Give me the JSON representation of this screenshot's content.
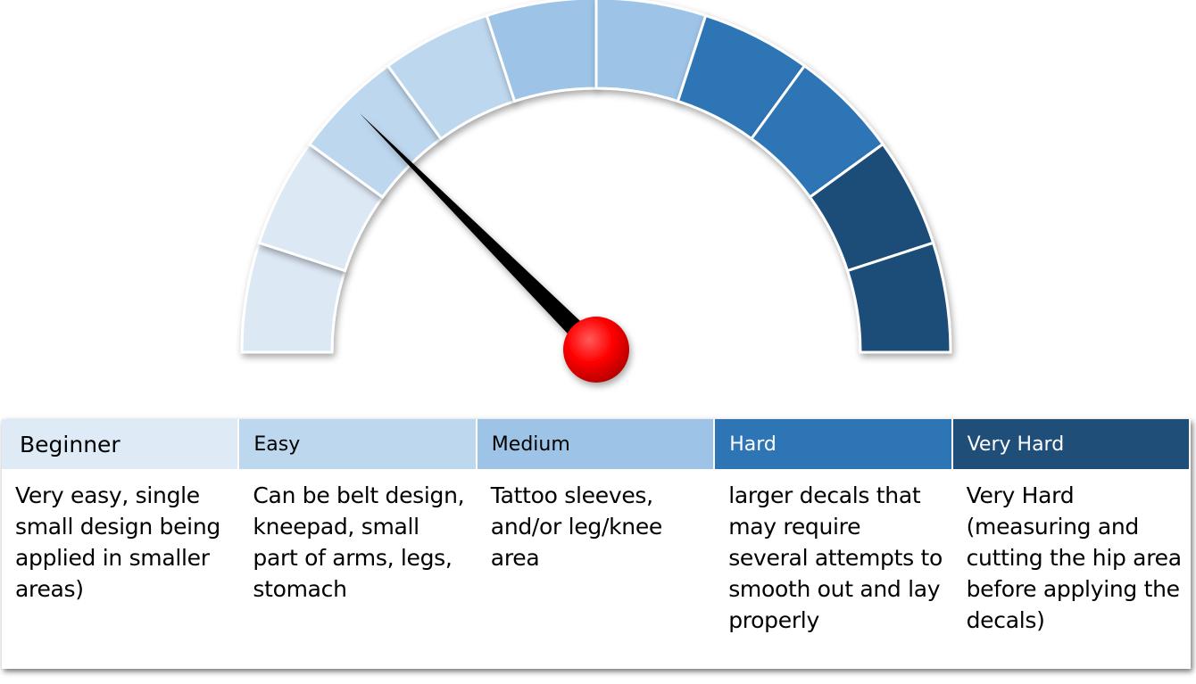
{
  "gauge": {
    "needle_value_fraction": 0.25,
    "segment_colors": [
      "#dde8f5",
      "#dde8f5",
      "#bdd7ee",
      "#bdd7ee",
      "#9dc3e6",
      "#9dc3e6",
      "#2e75b6",
      "#2e75b6",
      "#1f4e79",
      "#1f4e79"
    ],
    "needle_color": "#000000",
    "hub_color": "#ff0000"
  },
  "levels": [
    {
      "label": "Beginner",
      "color": "#deebf7",
      "text_color": "#000000",
      "description": "Very easy, single small design being applied in smaller areas)"
    },
    {
      "label": "Easy",
      "color": "#bdd7ee",
      "text_color": "#000000",
      "description": "Can be belt design, kneepad, small part of arms, legs, stomach"
    },
    {
      "label": "Medium",
      "color": "#9dc3e6",
      "text_color": "#000000",
      "description": "Tattoo sleeves, and/or leg/knee area"
    },
    {
      "label": "Hard",
      "color": "#2e75b6",
      "text_color": "#ffffff",
      "description": "larger decals that may require several attempts to smooth out and lay properly"
    },
    {
      "label": "Very Hard",
      "color": "#1f4e79",
      "text_color": "#ffffff",
      "description": "Very Hard (measuring and cutting the hip area before applying the decals)"
    }
  ]
}
